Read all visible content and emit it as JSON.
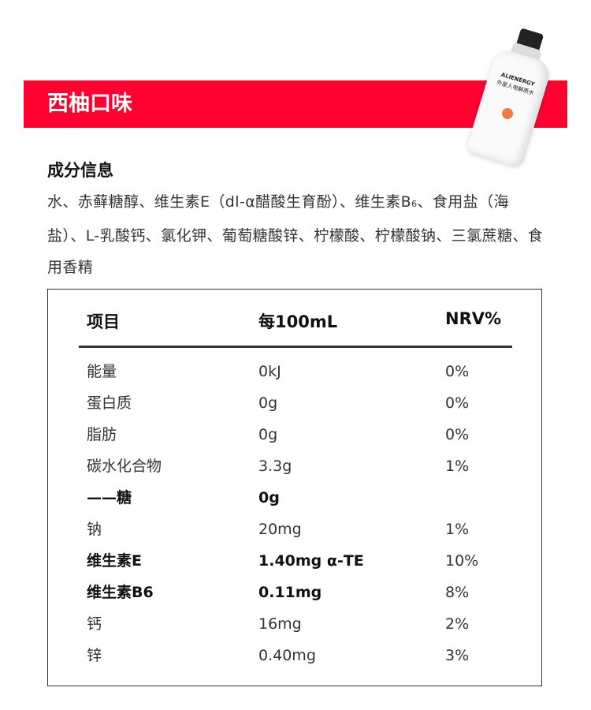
{
  "header": {
    "title": "西柚口味",
    "accent": "#ff0030"
  },
  "product": {
    "brand": "ALIENERGY",
    "name": "外星人电解质水"
  },
  "ingredients": {
    "title": "成分信息",
    "text": "水、赤藓糖醇、维生素E（dl-α醋酸生育酚）、维生素B6、食用盐（海盐）、L-乳酸钙、氯化钾、葡萄糖酸锌、柠檬酸、柠檬酸钠、三氯蔗糖、食用香精"
  },
  "nutrition": {
    "headers": [
      "项目",
      "每100mL",
      "NRV%"
    ],
    "rows": [
      {
        "item": "能量",
        "value": "0kJ",
        "nrv": "0%",
        "bold": false
      },
      {
        "item": "蛋白质",
        "value": "0g",
        "nrv": "0%",
        "bold": false
      },
      {
        "item": "脂肪",
        "value": "0g",
        "nrv": "0%",
        "bold": false
      },
      {
        "item": "碳水化合物",
        "value": "3.3g",
        "nrv": "1%",
        "bold": false
      },
      {
        "item": "——糖",
        "value": "0g",
        "nrv": "",
        "bold": true
      },
      {
        "item": "钠",
        "value": "20mg",
        "nrv": "1%",
        "bold": false
      },
      {
        "item": "维生素E",
        "value": "1.40mg α-TE",
        "nrv": "10%",
        "bold": true
      },
      {
        "item": "维生素B6",
        "value": "0.11mg",
        "nrv": "8%",
        "bold": true
      },
      {
        "item": "钙",
        "value": "16mg",
        "nrv": "2%",
        "bold": false
      },
      {
        "item": "锌",
        "value": "0.40mg",
        "nrv": "3%",
        "bold": false
      }
    ]
  }
}
